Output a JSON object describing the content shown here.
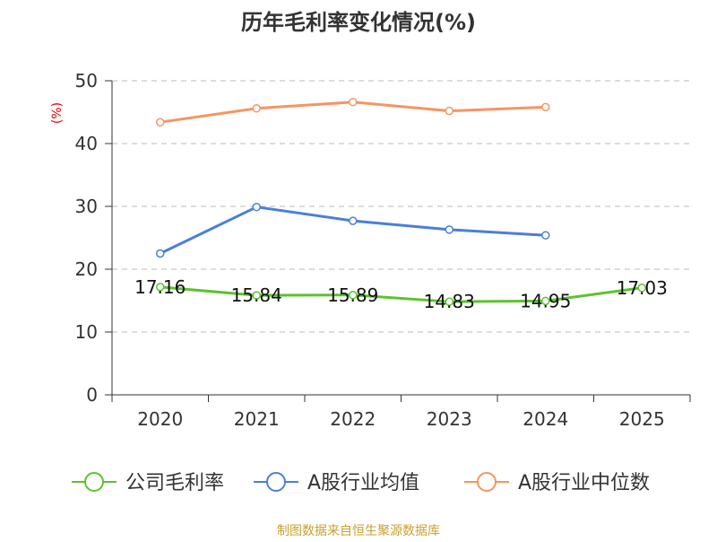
{
  "chart_data": {
    "type": "line",
    "title": "历年毛利率变化情况(%)",
    "ylabel": "(%)",
    "xlabel": "",
    "categories": [
      "2020",
      "2021",
      "2022",
      "2023",
      "2024",
      "2025"
    ],
    "ylim": [
      0,
      50
    ],
    "yticks": [
      0,
      10,
      20,
      30,
      40,
      50
    ],
    "grid": true,
    "legend_position": "bottom",
    "series": [
      {
        "name": "公司毛利率",
        "color": "#5cc22e",
        "values": [
          17.16,
          15.84,
          15.89,
          14.83,
          14.95,
          17.03
        ],
        "labels": [
          "17.16",
          "15.84",
          "15.89",
          "14.83",
          "14.95",
          "17.03"
        ]
      },
      {
        "name": "A股行业均值",
        "color": "#4a7fd8",
        "values": [
          22.5,
          29.9,
          27.7,
          26.3,
          25.4,
          null
        ]
      },
      {
        "name": "A股行业中位数",
        "color": "#f59563",
        "values": [
          43.4,
          45.6,
          46.6,
          45.2,
          45.8,
          null
        ]
      }
    ]
  },
  "footer": {
    "source": "制图数据来自恒生聚源数据库"
  }
}
